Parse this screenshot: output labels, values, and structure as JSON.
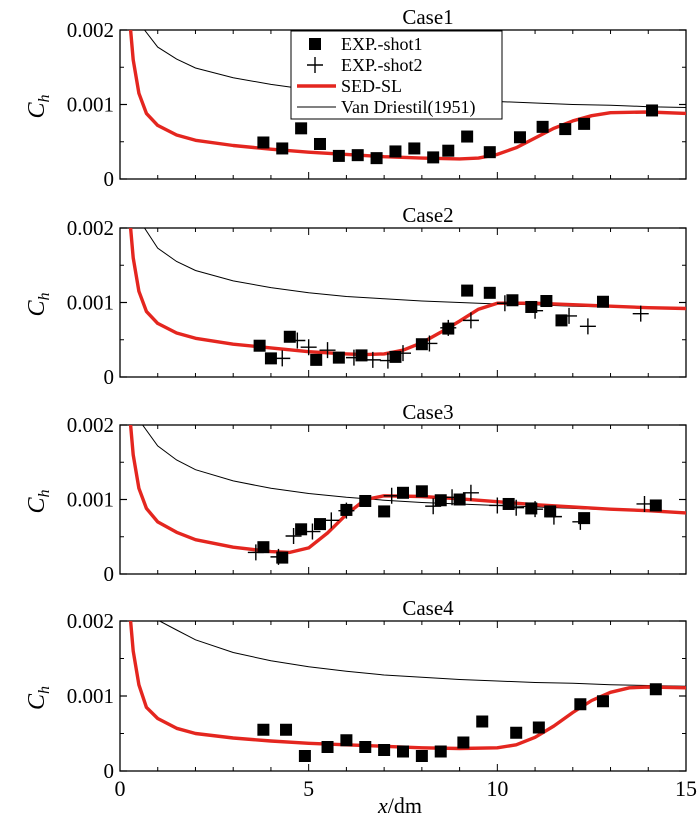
{
  "chart_data": {
    "type": "line",
    "shared_x": {
      "label_var": "x",
      "label_unit": "/dm",
      "range": [
        0,
        15
      ],
      "ticks": [
        0,
        5,
        10,
        15
      ],
      "tick_labels": [
        "0",
        "5",
        "10",
        "15"
      ]
    },
    "ylabel_var": "C",
    "ylabel_sub": "h",
    "y_range": [
      0,
      0.002
    ],
    "y_tick_labels": [
      "0",
      "0.001",
      "0.002"
    ],
    "legend": {
      "placement": "top-center",
      "entries": [
        {
          "label": "EXP.-shot1",
          "marker": "square",
          "color": "#000000"
        },
        {
          "label": "EXP.-shot2",
          "marker": "plus",
          "color": "#000000"
        },
        {
          "label": "SED-SL",
          "marker": "line",
          "color": "#e4261f"
        },
        {
          "label": "Van Driestil(1951)",
          "marker": "line",
          "color": "#000000"
        }
      ]
    },
    "panels": [
      {
        "title": "Case1",
        "sed_sl": [
          [
            0.28,
            0.002
          ],
          [
            0.35,
            0.0016
          ],
          [
            0.5,
            0.00115
          ],
          [
            0.7,
            0.00088
          ],
          [
            1,
            0.00072
          ],
          [
            1.5,
            0.00059
          ],
          [
            2,
            0.00052
          ],
          [
            3,
            0.00045
          ],
          [
            4,
            0.0004
          ],
          [
            5,
            0.00036
          ],
          [
            6,
            0.00033
          ],
          [
            7,
            0.0003
          ],
          [
            8,
            0.00028
          ],
          [
            9,
            0.00027
          ],
          [
            9.5,
            0.00028
          ],
          [
            10,
            0.00033
          ],
          [
            10.5,
            0.00042
          ],
          [
            11,
            0.00055
          ],
          [
            11.5,
            0.00068
          ],
          [
            12,
            0.00078
          ],
          [
            12.5,
            0.00085
          ],
          [
            13,
            0.00089
          ],
          [
            14,
            0.0009
          ],
          [
            15,
            0.00088
          ]
        ],
        "van_driest": [
          [
            0.65,
            0.002
          ],
          [
            1,
            0.00177
          ],
          [
            1.5,
            0.00161
          ],
          [
            2,
            0.00149
          ],
          [
            3,
            0.00136
          ],
          [
            4,
            0.00127
          ],
          [
            5,
            0.0012
          ],
          [
            6,
            0.00115
          ],
          [
            7,
            0.00111
          ],
          [
            8,
            0.00108
          ],
          [
            9,
            0.00106
          ],
          [
            10,
            0.00104
          ],
          [
            11,
            0.00102
          ],
          [
            12,
            0.001
          ],
          [
            13,
            0.00099
          ],
          [
            14,
            0.00097
          ],
          [
            15,
            0.00096
          ]
        ],
        "shot1": [
          [
            3.8,
            0.00049
          ],
          [
            4.3,
            0.00041
          ],
          [
            4.8,
            0.00068
          ],
          [
            5.3,
            0.00047
          ],
          [
            5.8,
            0.00031
          ],
          [
            6.3,
            0.00032
          ],
          [
            6.8,
            0.00028
          ],
          [
            7.3,
            0.00037
          ],
          [
            7.8,
            0.00041
          ],
          [
            8.3,
            0.00029
          ],
          [
            8.7,
            0.00038
          ],
          [
            9.2,
            0.00057
          ],
          [
            9.8,
            0.00036
          ],
          [
            10.6,
            0.00056
          ],
          [
            11.2,
            0.0007
          ],
          [
            11.8,
            0.00067
          ],
          [
            12.3,
            0.00074
          ],
          [
            14.1,
            0.00092
          ]
        ],
        "shot2": []
      },
      {
        "title": "Case2",
        "sed_sl": [
          [
            0.28,
            0.002
          ],
          [
            0.35,
            0.0016
          ],
          [
            0.5,
            0.00115
          ],
          [
            0.7,
            0.00088
          ],
          [
            1,
            0.00072
          ],
          [
            1.5,
            0.00059
          ],
          [
            2,
            0.00052
          ],
          [
            3,
            0.00044
          ],
          [
            4,
            0.00039
          ],
          [
            5,
            0.00034
          ],
          [
            6,
            0.00031
          ],
          [
            6.5,
            0.0003
          ],
          [
            7,
            0.00031
          ],
          [
            7.5,
            0.00036
          ],
          [
            8,
            0.00046
          ],
          [
            8.5,
            0.0006
          ],
          [
            9,
            0.00075
          ],
          [
            9.5,
            0.00091
          ],
          [
            10,
            0.00099
          ],
          [
            11,
            0.00099
          ],
          [
            12,
            0.00097
          ],
          [
            13,
            0.00095
          ],
          [
            14,
            0.00093
          ],
          [
            15,
            0.00092
          ]
        ],
        "van_driest": [
          [
            0.65,
            0.002
          ],
          [
            1,
            0.00173
          ],
          [
            1.5,
            0.00155
          ],
          [
            2,
            0.00143
          ],
          [
            3,
            0.00129
          ],
          [
            4,
            0.0012
          ],
          [
            5,
            0.00113
          ],
          [
            6,
            0.00108
          ],
          [
            7,
            0.00105
          ],
          [
            8,
            0.00102
          ],
          [
            9,
            0.001
          ],
          [
            10,
            0.00098
          ],
          [
            11,
            0.00097
          ],
          [
            12,
            0.00095
          ],
          [
            13,
            0.00094
          ],
          [
            14,
            0.00093
          ],
          [
            15,
            0.00092
          ]
        ],
        "shot1": [
          [
            3.7,
            0.00042
          ],
          [
            4,
            0.00025
          ],
          [
            4.5,
            0.00054
          ],
          [
            5.2,
            0.00023
          ],
          [
            5.8,
            0.00026
          ],
          [
            6.4,
            0.00029
          ],
          [
            7.3,
            0.00027
          ],
          [
            8,
            0.00044
          ],
          [
            8.7,
            0.00065
          ],
          [
            9.2,
            0.00116
          ],
          [
            9.8,
            0.00113
          ],
          [
            10.4,
            0.00103
          ],
          [
            10.9,
            0.00094
          ],
          [
            11.3,
            0.00102
          ],
          [
            11.7,
            0.00076
          ],
          [
            12.8,
            0.00101
          ]
        ],
        "shot2": [
          [
            4.3,
            0.00025
          ],
          [
            4.7,
            0.00049
          ],
          [
            5,
            0.0004
          ],
          [
            5.5,
            0.00036
          ],
          [
            6.2,
            0.00026
          ],
          [
            6.7,
            0.00023
          ],
          [
            7.1,
            0.00022
          ],
          [
            7.5,
            0.00032
          ],
          [
            8.2,
            0.00045
          ],
          [
            8.7,
            0.00066
          ],
          [
            9.3,
            0.00076
          ],
          [
            10.2,
            0.00099
          ],
          [
            11,
            0.00089
          ],
          [
            11.9,
            0.00082
          ],
          [
            12.4,
            0.00068
          ],
          [
            13.8,
            0.00085
          ]
        ]
      },
      {
        "title": "Case3",
        "sed_sl": [
          [
            0.28,
            0.002
          ],
          [
            0.35,
            0.0016
          ],
          [
            0.5,
            0.00115
          ],
          [
            0.7,
            0.00088
          ],
          [
            1,
            0.0007
          ],
          [
            1.5,
            0.00056
          ],
          [
            2,
            0.00046
          ],
          [
            3,
            0.00036
          ],
          [
            4,
            0.0003
          ],
          [
            4.5,
            0.00029
          ],
          [
            5,
            0.00035
          ],
          [
            5.5,
            0.00055
          ],
          [
            6,
            0.0008
          ],
          [
            6.5,
            0.001
          ],
          [
            7,
            0.00105
          ],
          [
            8,
            0.00104
          ],
          [
            9,
            0.00101
          ],
          [
            10,
            0.00097
          ],
          [
            11,
            0.00093
          ],
          [
            12,
            0.0009
          ],
          [
            13,
            0.00087
          ],
          [
            14,
            0.00085
          ],
          [
            15,
            0.00082
          ]
        ],
        "van_driest": [
          [
            0.6,
            0.002
          ],
          [
            1,
            0.00172
          ],
          [
            1.5,
            0.00153
          ],
          [
            2,
            0.0014
          ],
          [
            3,
            0.00125
          ],
          [
            4,
            0.00115
          ],
          [
            5,
            0.00108
          ],
          [
            6,
            0.00103
          ],
          [
            7,
            0.00099
          ],
          [
            8,
            0.00096
          ],
          [
            9,
            0.00094
          ],
          [
            10,
            0.00092
          ],
          [
            11,
            0.0009
          ],
          [
            12,
            0.00088
          ],
          [
            13,
            0.00086
          ],
          [
            14,
            0.00084
          ],
          [
            15,
            0.00082
          ]
        ],
        "shot1": [
          [
            3.8,
            0.00036
          ],
          [
            4.3,
            0.00022
          ],
          [
            4.8,
            0.0006
          ],
          [
            5.3,
            0.00067
          ],
          [
            6,
            0.00086
          ],
          [
            6.5,
            0.00098
          ],
          [
            7,
            0.00084
          ],
          [
            7.5,
            0.00109
          ],
          [
            8,
            0.00111
          ],
          [
            8.5,
            0.00099
          ],
          [
            9,
            0.001
          ],
          [
            10.3,
            0.00094
          ],
          [
            10.9,
            0.00088
          ],
          [
            11.4,
            0.00084
          ],
          [
            12.3,
            0.00075
          ],
          [
            14.2,
            0.00092
          ]
        ],
        "shot2": [
          [
            3.6,
            0.00029
          ],
          [
            4.2,
            0.00023
          ],
          [
            4.6,
            0.00051
          ],
          [
            5.1,
            0.00057
          ],
          [
            5.6,
            0.00072
          ],
          [
            6,
            0.00085
          ],
          [
            7.2,
            0.00105
          ],
          [
            8.3,
            0.00091
          ],
          [
            8.8,
            0.00103
          ],
          [
            9.3,
            0.00109
          ],
          [
            10,
            0.00092
          ],
          [
            10.5,
            0.00089
          ],
          [
            11,
            0.00087
          ],
          [
            11.5,
            0.00077
          ],
          [
            12.2,
            0.0007
          ],
          [
            13.9,
            0.00094
          ]
        ]
      },
      {
        "title": "Case4",
        "sed_sl": [
          [
            0.28,
            0.002
          ],
          [
            0.35,
            0.0016
          ],
          [
            0.5,
            0.00115
          ],
          [
            0.7,
            0.00085
          ],
          [
            1,
            0.0007
          ],
          [
            1.5,
            0.00057
          ],
          [
            2,
            0.0005
          ],
          [
            3,
            0.00044
          ],
          [
            4,
            0.0004
          ],
          [
            5,
            0.00037
          ],
          [
            6,
            0.00035
          ],
          [
            7,
            0.00033
          ],
          [
            8,
            0.00031
          ],
          [
            9,
            0.0003
          ],
          [
            10,
            0.00031
          ],
          [
            10.5,
            0.00035
          ],
          [
            11,
            0.00045
          ],
          [
            11.5,
            0.0006
          ],
          [
            12,
            0.00078
          ],
          [
            12.5,
            0.00094
          ],
          [
            13,
            0.00105
          ],
          [
            13.5,
            0.00111
          ],
          [
            14,
            0.00112
          ],
          [
            15,
            0.00111
          ]
        ],
        "van_driest": [
          [
            1.05,
            0.002
          ],
          [
            1.5,
            0.00188
          ],
          [
            2,
            0.00175
          ],
          [
            3,
            0.00158
          ],
          [
            4,
            0.00147
          ],
          [
            5,
            0.00139
          ],
          [
            6,
            0.00133
          ],
          [
            7,
            0.00128
          ],
          [
            8,
            0.00125
          ],
          [
            9,
            0.00122
          ],
          [
            10,
            0.0012
          ],
          [
            11,
            0.00118
          ],
          [
            12,
            0.00117
          ],
          [
            13,
            0.00115
          ],
          [
            14,
            0.00114
          ],
          [
            15,
            0.00113
          ]
        ],
        "shot1": [
          [
            3.8,
            0.00055
          ],
          [
            4.4,
            0.00055
          ],
          [
            4.9,
            0.0002
          ],
          [
            5.5,
            0.00032
          ],
          [
            6,
            0.00041
          ],
          [
            6.5,
            0.00032
          ],
          [
            7,
            0.00028
          ],
          [
            7.5,
            0.00026
          ],
          [
            8,
            0.0002
          ],
          [
            8.5,
            0.00026
          ],
          [
            9.1,
            0.00038
          ],
          [
            9.6,
            0.00066
          ],
          [
            10.5,
            0.00051
          ],
          [
            11.1,
            0.00058
          ],
          [
            12.2,
            0.00089
          ],
          [
            12.8,
            0.00093
          ],
          [
            14.2,
            0.00109
          ]
        ],
        "shot2": []
      }
    ]
  }
}
